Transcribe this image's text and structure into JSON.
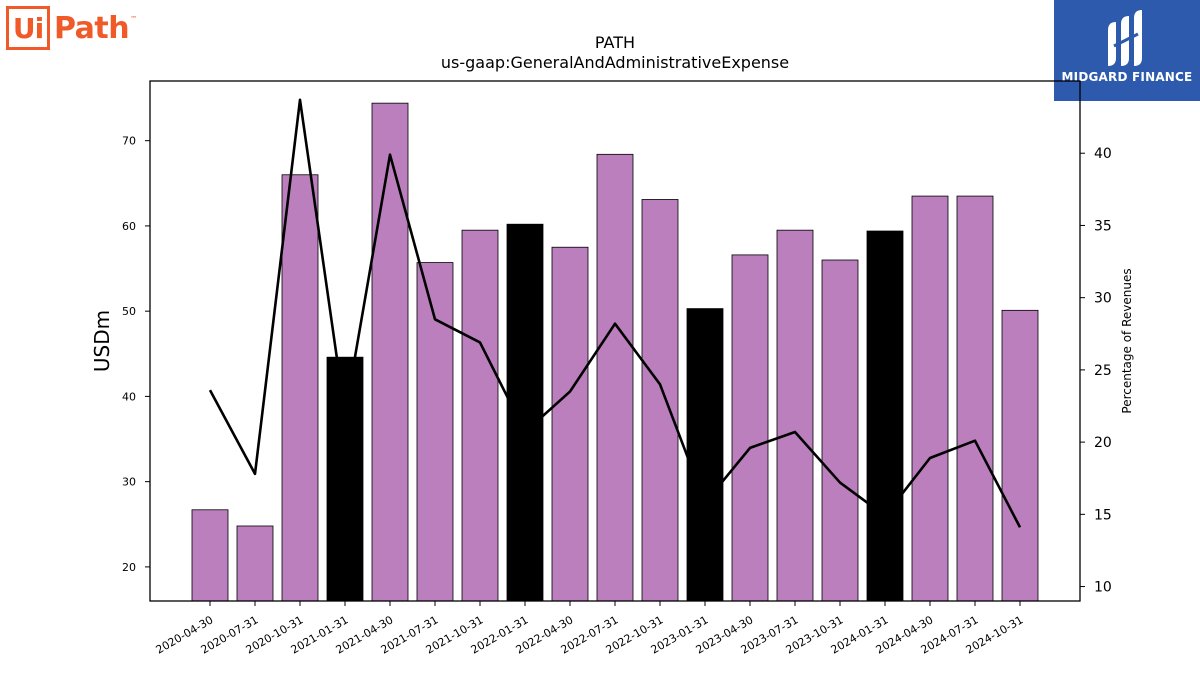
{
  "logos": {
    "left": {
      "ui": "Ui",
      "path": "Path",
      "tm": "™"
    },
    "right": {
      "text": "MIDGARD FINANCE"
    }
  },
  "chart_data": {
    "type": "bar",
    "title": "PATH",
    "subtitle": "us-gaap:GeneralAndAdministrativeExpense",
    "ylabel": "USDm",
    "y2label": "Percentage of Revenues",
    "ylim": [
      16,
      77
    ],
    "y2lim": [
      9,
      45
    ],
    "yticks": [
      20,
      30,
      40,
      50,
      60,
      70
    ],
    "y2ticks": [
      10,
      15,
      20,
      25,
      30,
      35,
      40
    ],
    "categories": [
      "2020-04-30",
      "2020-07-31",
      "2020-10-31",
      "2021-01-31",
      "2021-04-30",
      "2021-07-31",
      "2021-10-31",
      "2022-01-31",
      "2022-04-30",
      "2022-07-31",
      "2022-10-31",
      "2023-01-31",
      "2023-04-30",
      "2023-07-31",
      "2023-10-31",
      "2024-01-31",
      "2024-04-30",
      "2024-07-31",
      "2024-10-31"
    ],
    "series": [
      {
        "type": "bar",
        "axis": "left",
        "values": [
          26.7,
          24.8,
          66.0,
          44.6,
          74.4,
          55.7,
          59.5,
          60.2,
          57.5,
          68.4,
          63.1,
          50.3,
          56.6,
          59.5,
          56.0,
          59.4,
          63.5,
          63.5,
          50.1
        ],
        "colors": [
          "#bb7fbd",
          "#bb7fbd",
          "#bb7fbd",
          "#000000",
          "#bb7fbd",
          "#bb7fbd",
          "#bb7fbd",
          "#000000",
          "#bb7fbd",
          "#bb7fbd",
          "#bb7fbd",
          "#000000",
          "#bb7fbd",
          "#bb7fbd",
          "#bb7fbd",
          "#000000",
          "#bb7fbd",
          "#bb7fbd",
          "#bb7fbd"
        ]
      },
      {
        "type": "line",
        "axis": "right",
        "color": "#000000",
        "values": [
          23.6,
          17.8,
          43.7,
          21.9,
          39.9,
          28.5,
          26.9,
          20.7,
          23.5,
          28.2,
          24.0,
          15.8,
          19.6,
          20.7,
          17.2,
          14.9,
          18.9,
          20.1,
          14.1
        ]
      }
    ],
    "grid": false,
    "legend": "none"
  }
}
